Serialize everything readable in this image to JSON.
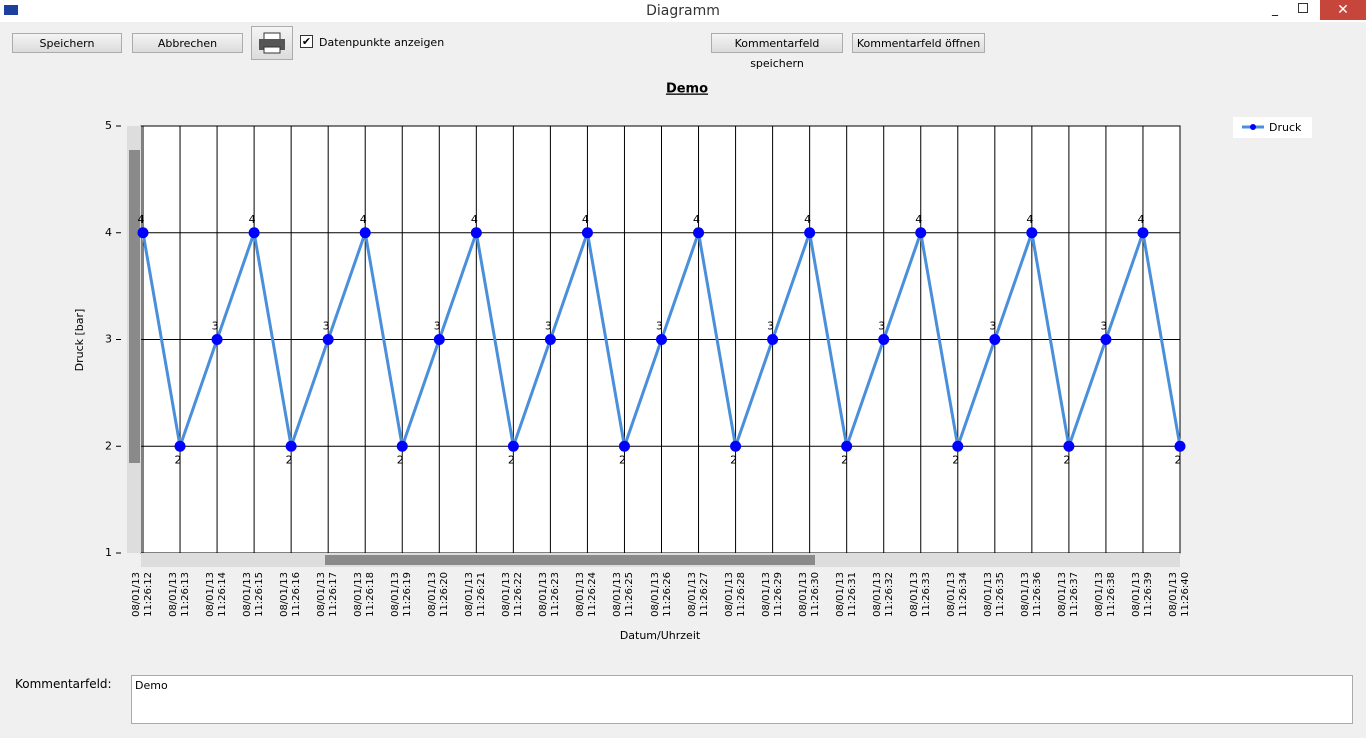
{
  "window": {
    "title": "Diagramm"
  },
  "toolbar": {
    "buttons": [
      "Speichern",
      "Abbrechen"
    ],
    "checkbox": {
      "label": "Datenpunkte anzeigen",
      "checked": true
    },
    "comment_buttons": [
      "Kommentarfeld speichern",
      "Kommentarfeld öffnen"
    ]
  },
  "chart_data": {
    "type": "line",
    "title": "Demo",
    "x_label": "Datum/Uhrzeit",
    "y_label": "Druck [bar]",
    "categories": [
      "08/01/13\n11:26:12",
      "08/01/13\n11:26:13",
      "08/01/13\n11:26:14",
      "08/01/13\n11:26:15",
      "08/01/13\n11:26:16",
      "08/01/13\n11:26:17",
      "08/01/13\n11:26:18",
      "08/01/13\n11:26:19",
      "08/01/13\n11:26:20",
      "08/01/13\n11:26:21",
      "08/01/13\n11:26:22",
      "08/01/13\n11:26:23",
      "08/01/13\n11:26:24",
      "08/01/13\n11:26:25",
      "08/01/13\n11:26:26",
      "08/01/13\n11:26:27",
      "08/01/13\n11:26:28",
      "08/01/13\n11:26:29",
      "08/01/13\n11:26:30",
      "08/01/13\n11:26:31",
      "08/01/13\n11:26:32",
      "08/01/13\n11:26:33",
      "08/01/13\n11:26:34",
      "08/01/13\n11:26:35",
      "08/01/13\n11:26:36",
      "08/01/13\n11:26:37",
      "08/01/13\n11:26:38",
      "08/01/13\n11:26:39",
      "08/01/13\n11:26:40"
    ],
    "series": [
      {
        "name": "Druck",
        "color": "#4a8fdb",
        "marker_color": "#0000ff",
        "values": [
          4,
          2,
          3,
          4,
          2,
          3,
          4,
          2,
          3,
          4,
          2,
          3,
          4,
          2,
          3,
          4,
          2,
          3,
          4,
          2,
          3,
          4,
          2,
          3,
          4,
          2,
          3,
          4,
          2
        ]
      }
    ],
    "ylim": [
      1,
      5
    ],
    "yticks": [
      1,
      2,
      3,
      4,
      5
    ],
    "grid": true,
    "legend": "top-right"
  },
  "comment": {
    "label": "Kommentarfeld:",
    "text": "Demo"
  }
}
